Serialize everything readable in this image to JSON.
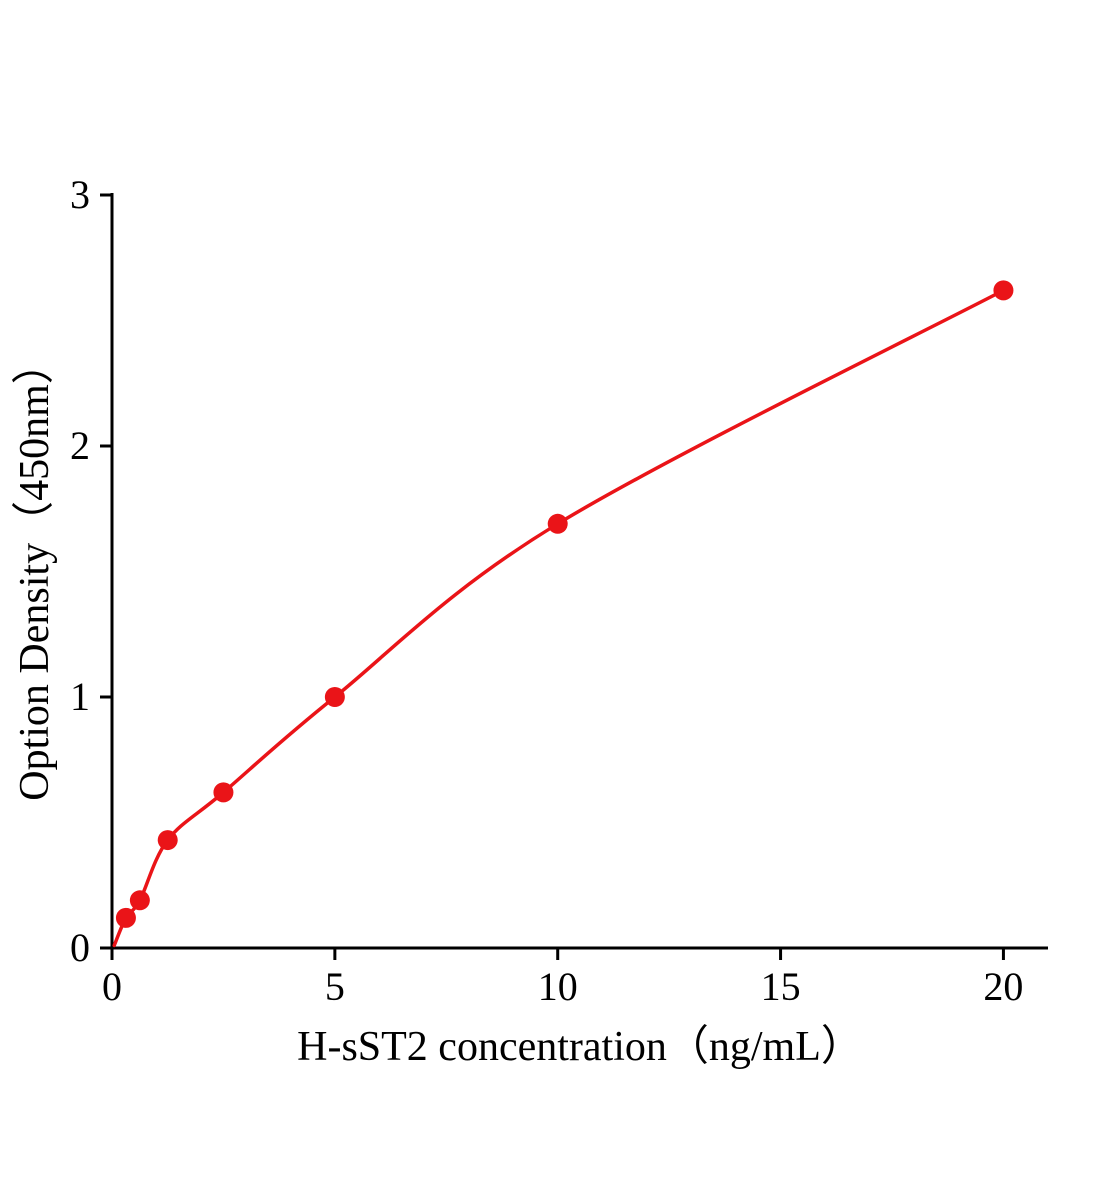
{
  "chart_data": {
    "type": "scatter",
    "title": "",
    "xlabel": "H-sST2 concentration（ng/mL）",
    "ylabel": "Option Density（450nm）",
    "x": [
      0.3125,
      0.625,
      1.25,
      2.5,
      5,
      10,
      20
    ],
    "y": [
      0.12,
      0.19,
      0.43,
      0.62,
      1.0,
      1.69,
      2.62
    ],
    "curve_start": {
      "x": 0.05,
      "y": 0.01
    },
    "xlim": [
      0,
      21
    ],
    "ylim": [
      0,
      3
    ],
    "xticks": [
      0,
      5,
      10,
      15,
      20
    ],
    "yticks": [
      0,
      1,
      2,
      3
    ],
    "grid": false,
    "legend": "none",
    "line_color": "#ea1418",
    "marker_color": "#ea1418",
    "axis_color": "#000000"
  }
}
